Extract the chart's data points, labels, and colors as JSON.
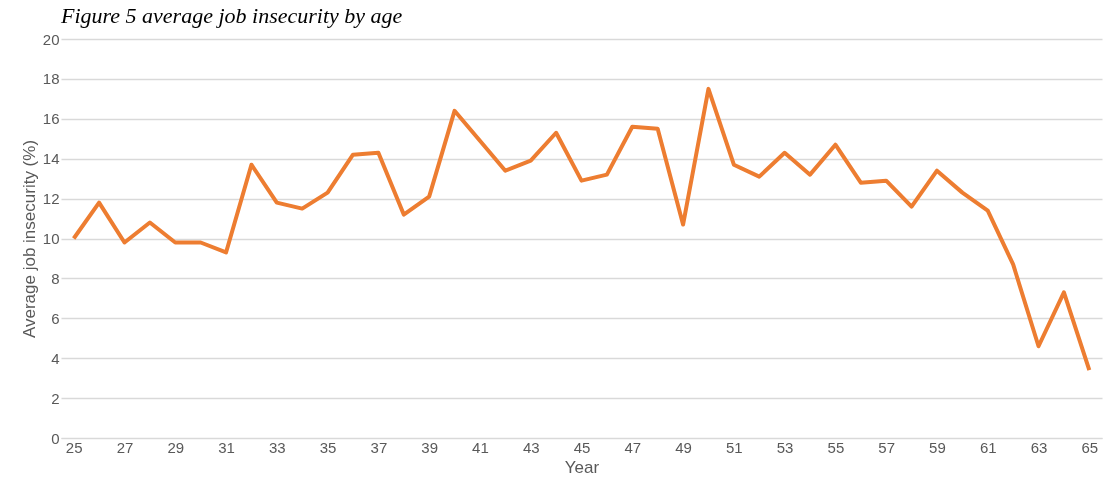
{
  "chart_data": {
    "type": "line",
    "title": "Figure 5 average job insecurity by age",
    "xlabel": "Year",
    "ylabel": "Average job insecurity (%)",
    "categories": [
      "25",
      null,
      "27",
      null,
      "29",
      null,
      "31",
      null,
      "33",
      null,
      "35",
      null,
      "37",
      null,
      "39",
      null,
      "41",
      null,
      "43",
      null,
      "45",
      null,
      "47",
      null,
      "49",
      null,
      "51",
      null,
      "53",
      null,
      "55",
      null,
      "57",
      null,
      "59",
      null,
      "61",
      null,
      "63",
      null,
      "65"
    ],
    "series": [
      {
        "color": "#ed7d31",
        "values": [
          10.0,
          11.8,
          9.8,
          10.8,
          9.8,
          9.8,
          9.3,
          13.7,
          11.8,
          11.5,
          12.3,
          14.2,
          14.3,
          11.2,
          12.1,
          16.4,
          14.9,
          13.4,
          13.9,
          15.3,
          12.9,
          13.2,
          15.6,
          15.5,
          10.7,
          17.5,
          13.7,
          13.1,
          14.3,
          13.2,
          14.7,
          12.8,
          12.9,
          11.6,
          13.4,
          12.3,
          11.4,
          8.7,
          4.6,
          7.3,
          3.4
        ]
      }
    ],
    "ylim": [
      0,
      20
    ],
    "yticks": [
      0,
      2,
      4,
      6,
      8,
      10,
      12,
      14,
      16,
      18,
      20
    ],
    "grid": "y",
    "legend": false,
    "marker": "none",
    "line_style": "solid"
  }
}
